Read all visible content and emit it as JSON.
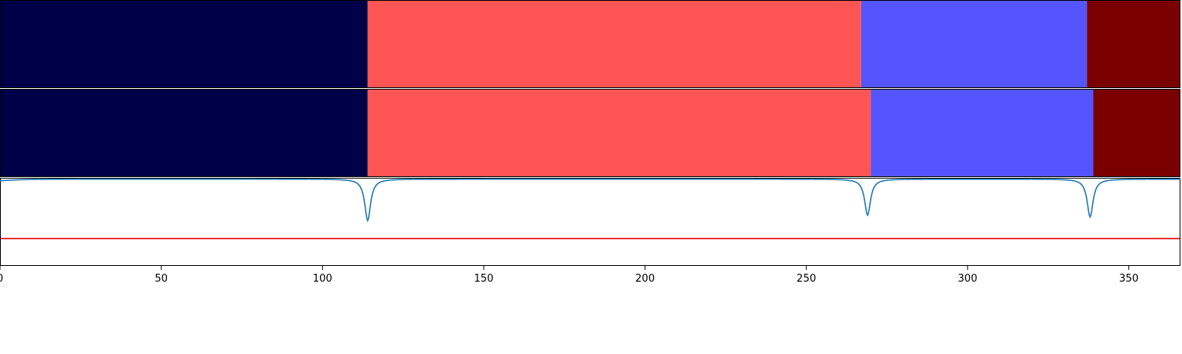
{
  "chart_data": [
    {
      "type": "bar",
      "orientation": "horizontal-segments",
      "segments": [
        {
          "start": 0,
          "end": 114,
          "color": "#000048"
        },
        {
          "start": 114,
          "end": 267,
          "color": "#ff5555"
        },
        {
          "start": 267,
          "end": 337,
          "color": "#5555ff"
        },
        {
          "start": 337,
          "end": 366,
          "color": "#7a0000"
        }
      ],
      "xlim": [
        0,
        366
      ]
    },
    {
      "type": "bar",
      "orientation": "horizontal-segments",
      "segments": [
        {
          "start": 0,
          "end": 114,
          "color": "#000048"
        },
        {
          "start": 114,
          "end": 270,
          "color": "#ff5555"
        },
        {
          "start": 270,
          "end": 339,
          "color": "#5555ff"
        },
        {
          "start": 339,
          "end": 366,
          "color": "#7a0000"
        }
      ],
      "xlim": [
        0,
        366
      ]
    },
    {
      "type": "line",
      "xlim": [
        0,
        366
      ],
      "ylim": [
        0,
        1
      ],
      "series": [
        {
          "color": "#1f77b4",
          "baseline": 0.985,
          "dips": [
            {
              "x": 114,
              "depth": 0.47
            },
            {
              "x": 269,
              "depth": 0.41
            },
            {
              "x": 338,
              "depth": 0.43
            }
          ]
        }
      ],
      "threshold": {
        "y": 0.31,
        "color": "#e00000"
      },
      "xticks": [
        0,
        50,
        100,
        150,
        200,
        250,
        300,
        350
      ]
    }
  ],
  "colors": {
    "axis": "#000000",
    "background": "#ffffff"
  }
}
